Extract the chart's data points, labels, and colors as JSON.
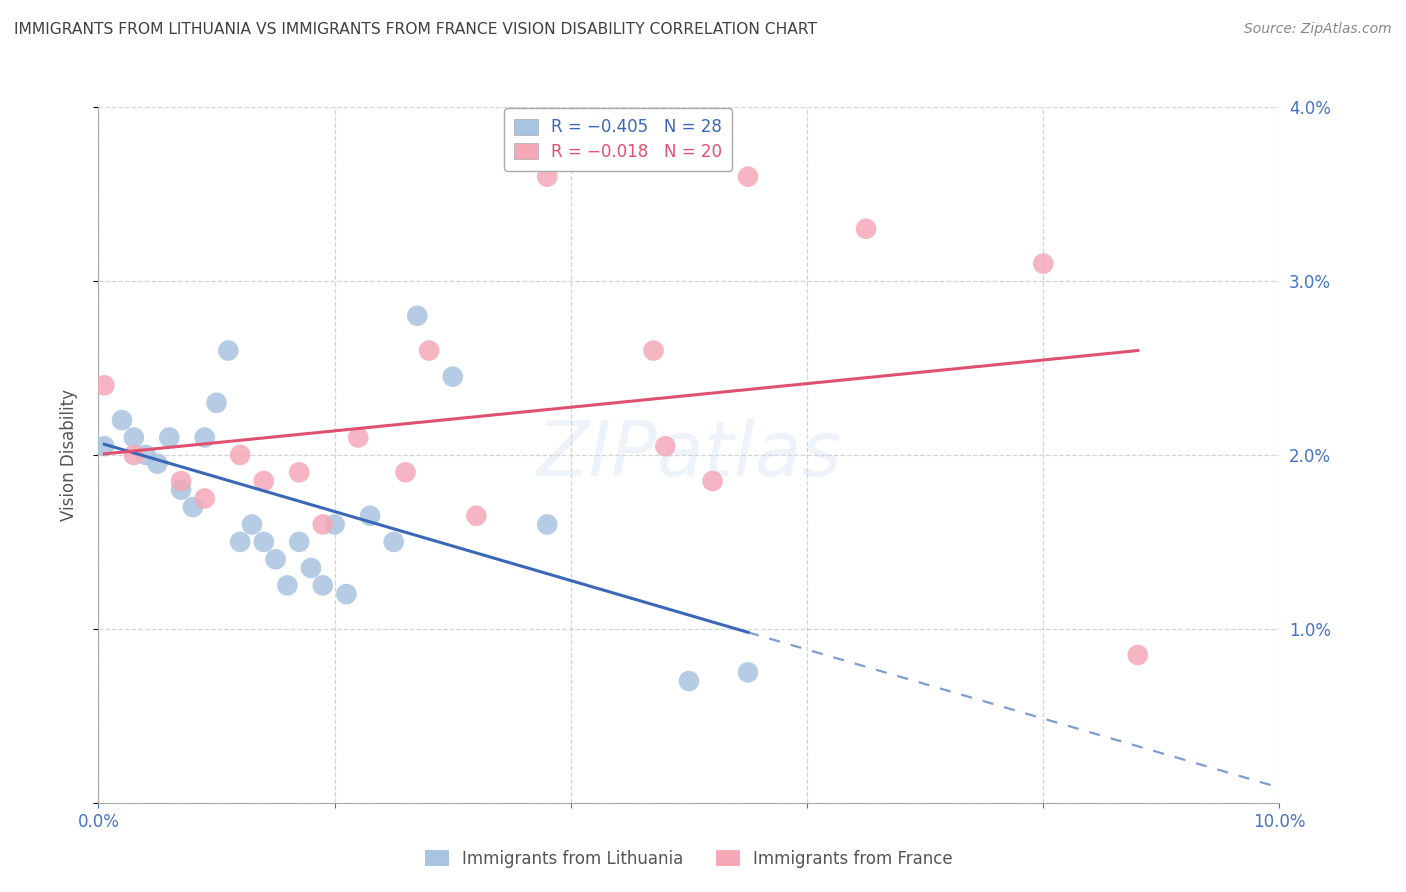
{
  "title": "IMMIGRANTS FROM LITHUANIA VS IMMIGRANTS FROM FRANCE VISION DISABILITY CORRELATION CHART",
  "source": "Source: ZipAtlas.com",
  "ylabel": "Vision Disability",
  "xlim": [
    0.0,
    0.1
  ],
  "ylim": [
    0.0,
    0.04
  ],
  "yticks": [
    0.0,
    0.01,
    0.02,
    0.03,
    0.04
  ],
  "ytick_labels_right": [
    "",
    "1.0%",
    "2.0%",
    "3.0%",
    "4.0%"
  ],
  "xticks": [
    0.0,
    0.02,
    0.04,
    0.06,
    0.08,
    0.1
  ],
  "xtick_labels": [
    "0.0%",
    "",
    "",
    "",
    "",
    "10.0%"
  ],
  "lithuania_x": [
    0.0005,
    0.002,
    0.003,
    0.004,
    0.005,
    0.006,
    0.007,
    0.008,
    0.009,
    0.01,
    0.011,
    0.012,
    0.013,
    0.014,
    0.015,
    0.016,
    0.017,
    0.018,
    0.019,
    0.02,
    0.021,
    0.023,
    0.025,
    0.027,
    0.03,
    0.038,
    0.05,
    0.055
  ],
  "lithuania_y": [
    0.0205,
    0.022,
    0.021,
    0.02,
    0.0195,
    0.021,
    0.018,
    0.017,
    0.021,
    0.023,
    0.026,
    0.015,
    0.016,
    0.015,
    0.014,
    0.0125,
    0.015,
    0.0135,
    0.0125,
    0.016,
    0.012,
    0.0165,
    0.015,
    0.028,
    0.0245,
    0.016,
    0.007,
    0.0075
  ],
  "france_x": [
    0.0005,
    0.003,
    0.007,
    0.009,
    0.012,
    0.014,
    0.017,
    0.019,
    0.022,
    0.026,
    0.028,
    0.032,
    0.038,
    0.047,
    0.048,
    0.052,
    0.055,
    0.065,
    0.08,
    0.088
  ],
  "france_y": [
    0.024,
    0.02,
    0.0185,
    0.0175,
    0.02,
    0.0185,
    0.019,
    0.016,
    0.021,
    0.019,
    0.026,
    0.0165,
    0.036,
    0.026,
    0.0205,
    0.0185,
    0.036,
    0.033,
    0.031,
    0.0085
  ],
  "R_lithuania": -0.405,
  "N_lithuania": 28,
  "R_france": -0.018,
  "N_france": 20,
  "lithuania_color": "#a8c4e0",
  "france_color": "#f4a8b8",
  "regression_line_lithuania_color": "#3a67b8",
  "regression_line_france_color": "#e05070",
  "watermark": "ZIPatlas",
  "background_color": "#ffffff",
  "grid_color": "#c8c8c8",
  "axis_label_color": "#4472c4",
  "title_color": "#404040"
}
